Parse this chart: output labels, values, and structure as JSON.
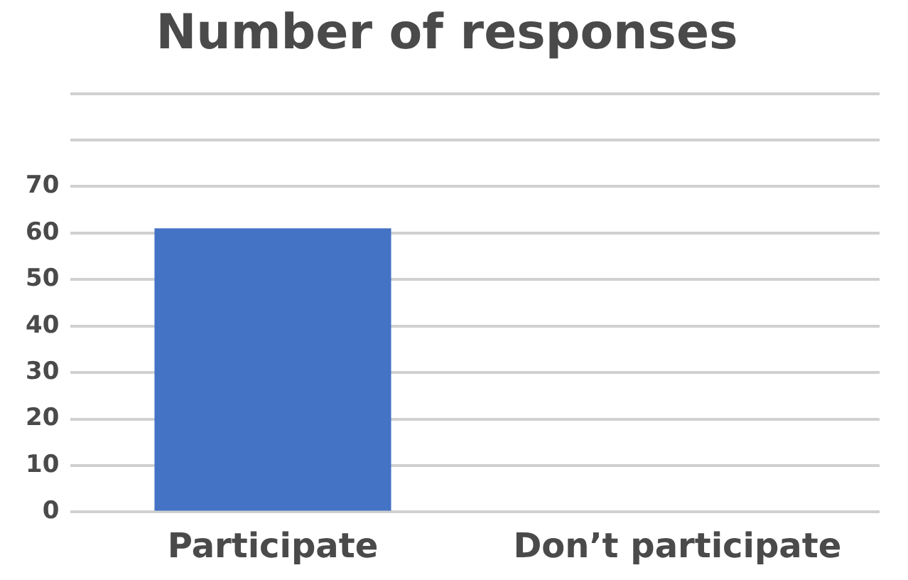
{
  "chart_data": {
    "type": "bar",
    "title": "Number of responses",
    "categories": [
      "Participate",
      "Don’t participate"
    ],
    "values": [
      61,
      0
    ],
    "color": "#4472c4",
    "ylim": [
      0,
      90
    ],
    "yticks": [
      0,
      10,
      20,
      30,
      40,
      50,
      60,
      70,
      {
        "value": 80,
        "label": null
      },
      {
        "value": 90,
        "label": null
      }
    ],
    "grid": "y",
    "legend": false
  }
}
